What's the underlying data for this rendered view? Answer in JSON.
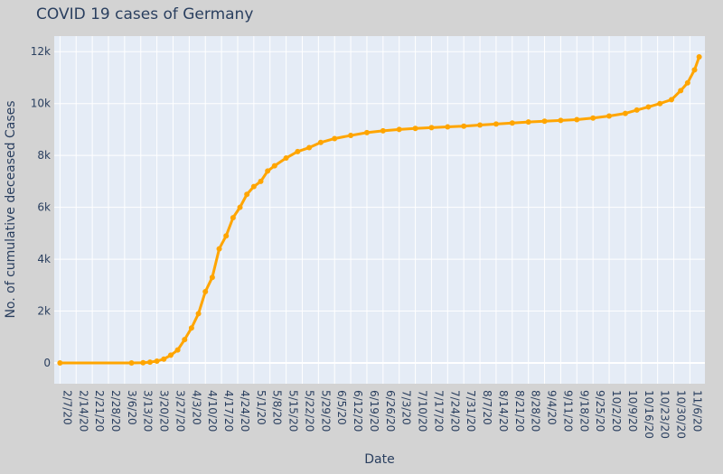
{
  "chart_data": {
    "type": "line",
    "title": "COVID 19 cases of Germany",
    "xlabel": "Date",
    "ylabel": "No. of cumulative deceased Cases",
    "x_start": "2/7/20",
    "x_end": "11/10/20",
    "x_tick_labels": [
      "2/7/20",
      "2/14/20",
      "2/21/20",
      "2/28/20",
      "3/6/20",
      "3/13/20",
      "3/20/20",
      "3/27/20",
      "4/3/20",
      "4/10/20",
      "4/17/20",
      "4/24/20",
      "5/1/20",
      "5/8/20",
      "5/15/20",
      "5/22/20",
      "5/29/20",
      "6/5/20",
      "6/12/20",
      "6/19/20",
      "6/26/20",
      "7/3/20",
      "7/10/20",
      "7/17/20",
      "7/24/20",
      "7/31/20",
      "8/7/20",
      "8/14/20",
      "8/21/20",
      "8/28/20",
      "9/4/20",
      "9/11/20",
      "9/18/20",
      "9/25/20",
      "10/2/20",
      "10/9/20",
      "10/16/20",
      "10/23/20",
      "10/30/20",
      "11/6/20"
    ],
    "y_ticks": [
      0,
      2000,
      4000,
      6000,
      8000,
      10000,
      12000
    ],
    "y_tick_labels": [
      "0",
      "2k",
      "4k",
      "6k",
      "8k",
      "10k",
      "12k"
    ],
    "ylim": [
      -800,
      12600
    ],
    "grid": true,
    "series": [
      {
        "color": "#ffa500",
        "x": [
          "2/7/20",
          "3/9/20",
          "3/14/20",
          "3/17/20",
          "3/20/20",
          "3/23/20",
          "3/26/20",
          "3/29/20",
          "4/1/20",
          "4/4/20",
          "4/7/20",
          "4/10/20",
          "4/13/20",
          "4/16/20",
          "4/19/20",
          "4/22/20",
          "4/25/20",
          "4/28/20",
          "5/1/20",
          "5/4/20",
          "5/7/20",
          "5/10/20",
          "5/15/20",
          "5/20/20",
          "5/25/20",
          "5/30/20",
          "6/5/20",
          "6/12/20",
          "6/19/20",
          "6/26/20",
          "7/3/20",
          "7/10/20",
          "7/17/20",
          "7/24/20",
          "7/31/20",
          "8/7/20",
          "8/14/20",
          "8/21/20",
          "8/28/20",
          "9/4/20",
          "9/11/20",
          "9/18/20",
          "9/25/20",
          "10/2/20",
          "10/9/20",
          "10/14/20",
          "10/19/20",
          "10/24/20",
          "10/29/20",
          "11/2/20",
          "11/5/20",
          "11/8/20",
          "11/10/20"
        ],
        "y": [
          0,
          0,
          10,
          30,
          70,
          150,
          300,
          500,
          900,
          1350,
          1900,
          2750,
          3300,
          4400,
          4900,
          5600,
          6000,
          6500,
          6800,
          7000,
          7400,
          7600,
          7900,
          8150,
          8300,
          8500,
          8650,
          8770,
          8880,
          8950,
          9000,
          9040,
          9070,
          9100,
          9130,
          9170,
          9210,
          9250,
          9290,
          9320,
          9350,
          9380,
          9440,
          9520,
          9620,
          9750,
          9870,
          10000,
          10150,
          10500,
          10800,
          11300,
          11800
        ]
      }
    ]
  }
}
